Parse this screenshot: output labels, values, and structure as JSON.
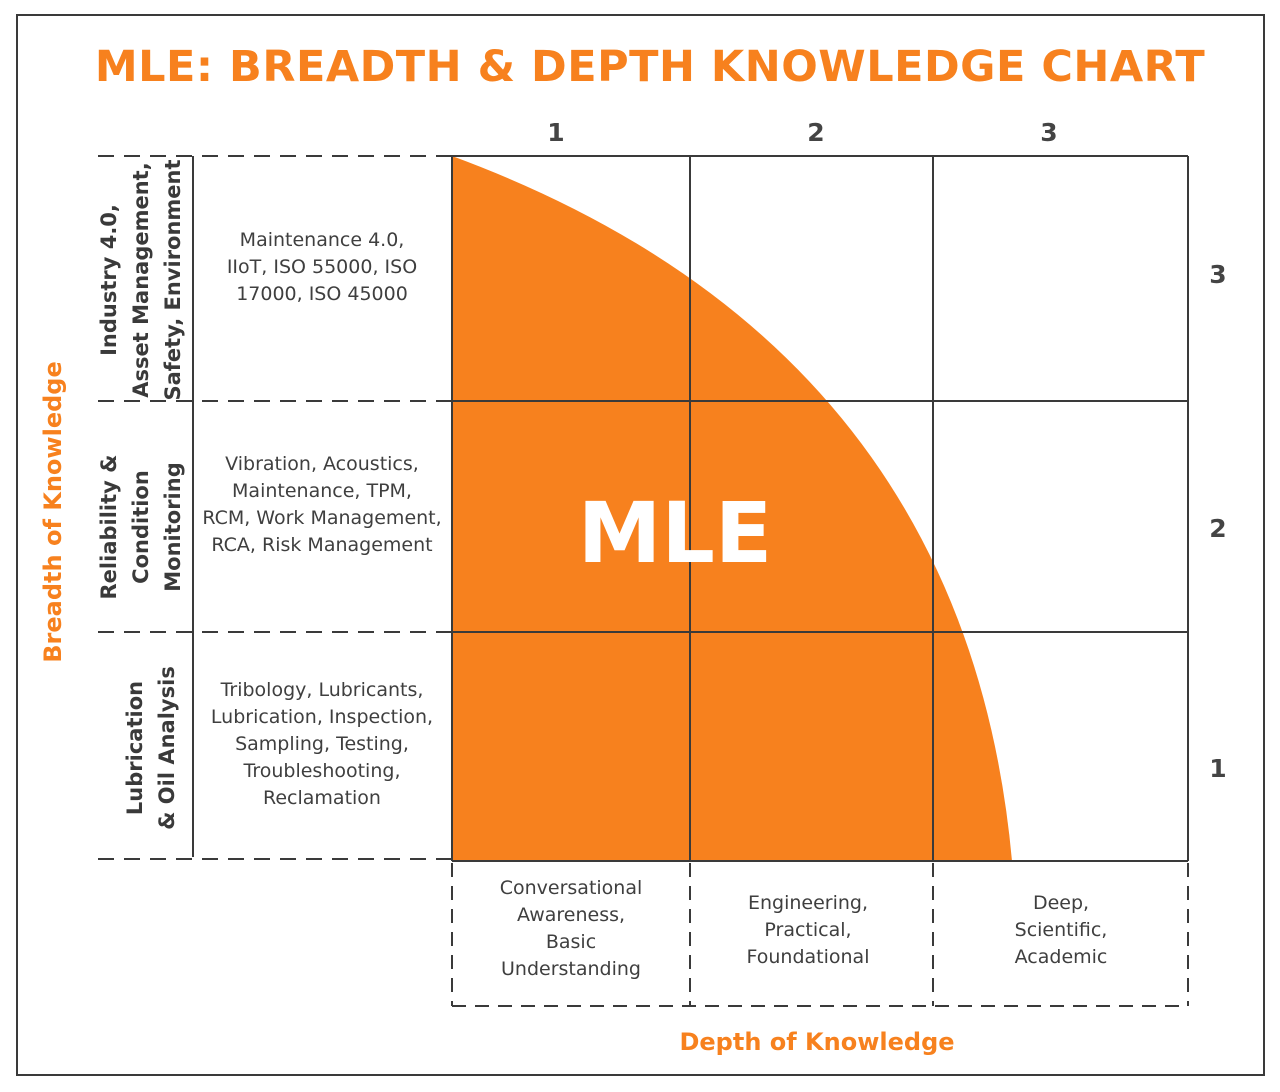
{
  "title": "MLE: BREADTH & DEPTH KNOWLEDGE CHART",
  "center_label": "MLE",
  "x_axis_label": "Depth of Knowledge",
  "y_axis_label": "Breadth of Knowledge",
  "columns": [
    "1",
    "2",
    "3"
  ],
  "rows_numbers": [
    "3",
    "2",
    "1"
  ],
  "categories": [
    {
      "name": "Industry 4.0,\nAsset Management,\nSafety, Environment",
      "description": "Maintenance 4.0,\nIIoT, ISO 55000, ISO\n17000, ISO 45000"
    },
    {
      "name": "Reliability &\nCondition\nMonitoring",
      "description": "Vibration, Acoustics,\nMaintenance, TPM,\nRCM, Work Management,\nRCA, Risk Management"
    },
    {
      "name": "Lubrication\n& Oil Analysis",
      "description": "Tribology, Lubricants,\nLubrication, Inspection,\nSampling, Testing,\nTroubleshooting,\nReclamation"
    }
  ],
  "depth_levels": [
    "Conversational\nAwareness,\nBasic\nUnderstanding",
    "Engineering,\nPractical,\nFoundational",
    "Deep,\nScientific,\nAcademic"
  ],
  "colors": {
    "accent": "#f7811e",
    "text": "#3f3f3f",
    "lines": "#3a3a3a"
  }
}
